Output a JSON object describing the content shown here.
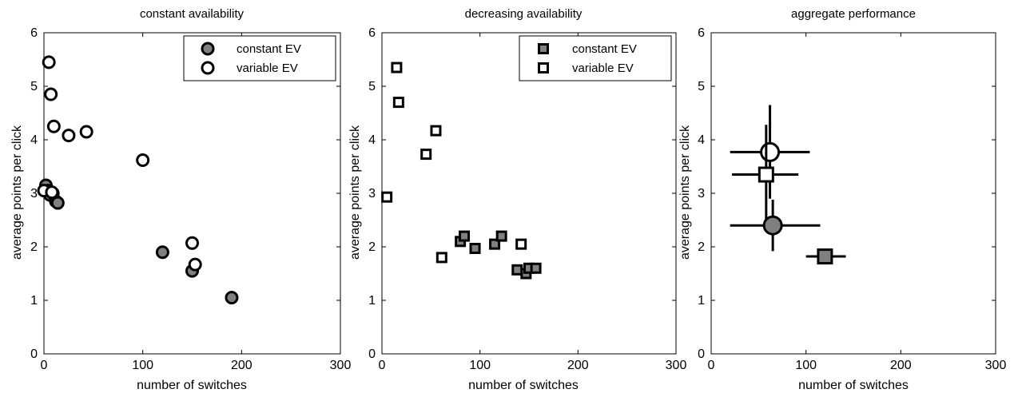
{
  "chart_data": [
    {
      "type": "scatter",
      "title": "constant availability",
      "xlabel": "number of switches",
      "ylabel": "average points per click",
      "xlim": [
        0,
        300
      ],
      "ylim": [
        0,
        6
      ],
      "xticks": [
        0,
        100,
        200,
        300
      ],
      "yticks": [
        0,
        1,
        2,
        3,
        4,
        5,
        6
      ],
      "legend": "top-right",
      "series": [
        {
          "name": "constant EV",
          "marker": "circle",
          "fill": "#808080",
          "points": [
            [
              2,
              3.15
            ],
            [
              4,
              3.05
            ],
            [
              6,
              2.97
            ],
            [
              9,
              3.0
            ],
            [
              12,
              2.85
            ],
            [
              14,
              2.82
            ],
            [
              120,
              1.9
            ],
            [
              150,
              1.55
            ],
            [
              190,
              1.05
            ]
          ]
        },
        {
          "name": "variable EV",
          "marker": "circle",
          "fill": "#ffffff",
          "points": [
            [
              0,
              3.05
            ],
            [
              5,
              5.45
            ],
            [
              7,
              4.85
            ],
            [
              10,
              4.25
            ],
            [
              25,
              4.08
            ],
            [
              43,
              4.15
            ],
            [
              100,
              3.62
            ],
            [
              150,
              2.07
            ],
            [
              153,
              1.67
            ],
            [
              8,
              3.02
            ]
          ]
        }
      ]
    },
    {
      "type": "scatter",
      "title": "decreasing availability",
      "xlabel": "number of switches",
      "ylabel": "average points per click",
      "xlim": [
        0,
        300
      ],
      "ylim": [
        0,
        6
      ],
      "xticks": [
        0,
        100,
        200,
        300
      ],
      "yticks": [
        0,
        1,
        2,
        3,
        4,
        5,
        6
      ],
      "legend": "top-right",
      "series": [
        {
          "name": "constant EV",
          "marker": "square",
          "fill": "#808080",
          "points": [
            [
              80,
              2.1
            ],
            [
              84,
              2.2
            ],
            [
              95,
              1.97
            ],
            [
              115,
              2.05
            ],
            [
              122,
              2.2
            ],
            [
              138,
              1.57
            ],
            [
              147,
              1.5
            ],
            [
              150,
              1.6
            ],
            [
              157,
              1.6
            ]
          ]
        },
        {
          "name": "variable EV",
          "marker": "square",
          "fill": "#ffffff",
          "points": [
            [
              5,
              2.93
            ],
            [
              15,
              5.35
            ],
            [
              17,
              4.7
            ],
            [
              45,
              3.73
            ],
            [
              55,
              4.17
            ],
            [
              61,
              1.8
            ],
            [
              142,
              2.05
            ]
          ]
        }
      ]
    },
    {
      "type": "scatter",
      "title": "aggregate performance",
      "xlabel": "number of switches",
      "ylabel": "average points per click",
      "xlim": [
        0,
        300
      ],
      "ylim": [
        0,
        6
      ],
      "xticks": [
        0,
        100,
        200,
        300
      ],
      "yticks": [
        0,
        1,
        2,
        3,
        4,
        5,
        6
      ],
      "points": [
        {
          "marker": "circle",
          "fill": "#ffffff",
          "x": 62,
          "y": 3.77,
          "xerr": [
            20,
            104
          ],
          "yerr": [
            2.9,
            4.65
          ]
        },
        {
          "marker": "square",
          "fill": "#ffffff",
          "x": 58,
          "y": 3.35,
          "xerr": [
            22,
            92
          ],
          "yerr": [
            2.45,
            4.28
          ]
        },
        {
          "marker": "circle",
          "fill": "#808080",
          "x": 65,
          "y": 2.4,
          "xerr": [
            20,
            115
          ],
          "yerr": [
            1.92,
            2.88
          ]
        },
        {
          "marker": "square",
          "fill": "#808080",
          "x": 120,
          "y": 1.82,
          "xerr": [
            100,
            142
          ],
          "yerr": [
            1.67,
            1.97
          ]
        }
      ]
    }
  ]
}
